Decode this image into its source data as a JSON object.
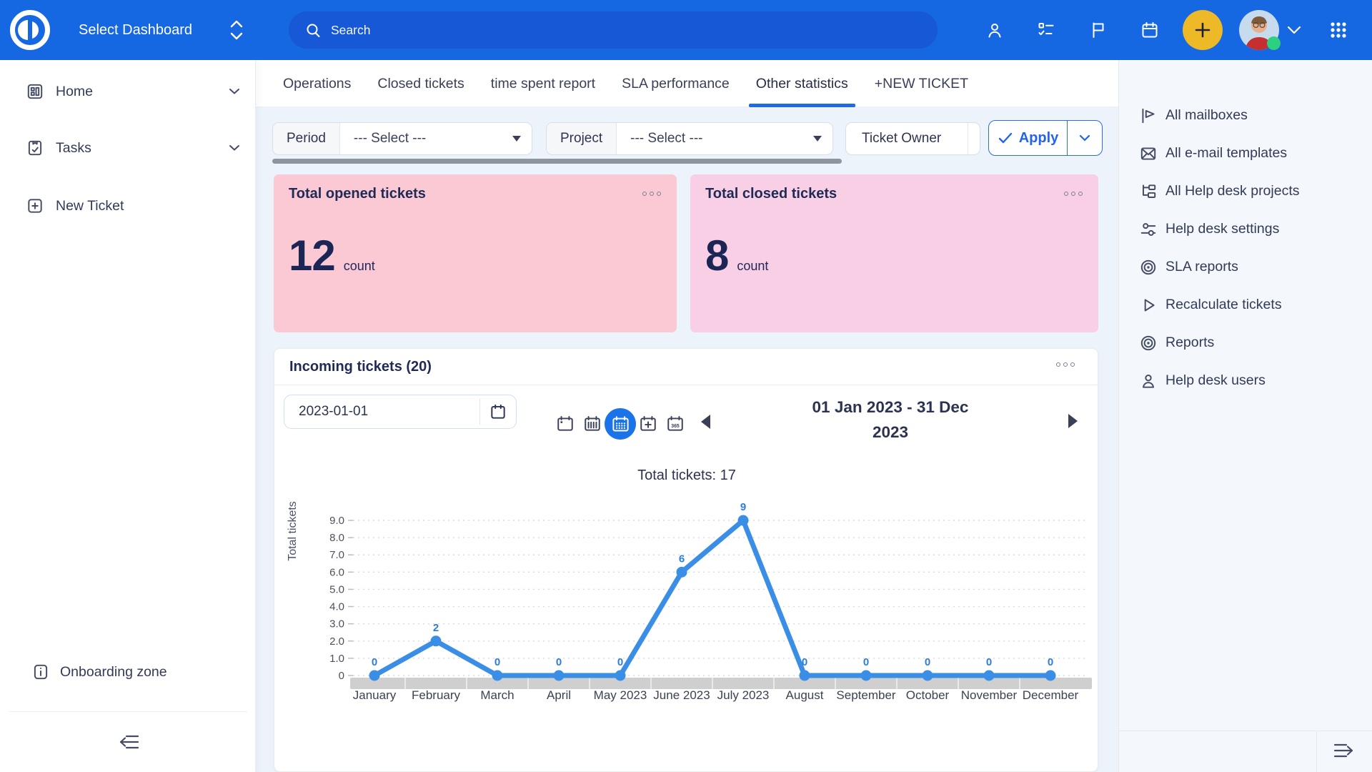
{
  "topbar": {
    "brand": "Select Dashboard",
    "search": {
      "placeholder": "Search"
    },
    "colors": {
      "bar": "#1667e2",
      "search_pill": "#1658d6",
      "plus_button": "#eeb927",
      "presence_dot": "#2bd17e"
    }
  },
  "sidebar": {
    "items": [
      {
        "label": "Home",
        "expandable": true
      },
      {
        "label": "Tasks",
        "expandable": true
      },
      {
        "label": "New Ticket",
        "expandable": false
      }
    ],
    "onboarding_label": "Onboarding zone"
  },
  "tabs": {
    "items": [
      {
        "label": "Operations"
      },
      {
        "label": "Closed tickets"
      },
      {
        "label": "time spent report"
      },
      {
        "label": "SLA performance"
      },
      {
        "label": "Other statistics"
      },
      {
        "label": "+NEW TICKET"
      }
    ],
    "active_index": 4,
    "accent_color": "#2368e4"
  },
  "filters": {
    "period": {
      "label": "Period",
      "value": "--- Select ---"
    },
    "project": {
      "label": "Project",
      "value": "--- Select ---"
    },
    "ticket_owner": {
      "label": "Ticket Owner"
    },
    "apply": {
      "label": "Apply"
    }
  },
  "stat_cards": [
    {
      "title": "Total opened tickets",
      "value": "12",
      "unit": "count",
      "bg": "#fbc9d4"
    },
    {
      "title": "Total closed tickets",
      "value": "8",
      "unit": "count",
      "bg": "#f8cfe5"
    }
  ],
  "widget": {
    "title": "Incoming tickets (20)",
    "date_input_value": "2023-01-01",
    "view_modes": [
      "day",
      "week",
      "month",
      "add-range",
      "year"
    ],
    "active_view": "month",
    "year_icon_label": "365",
    "range": {
      "line1": "01 Jan 2023 - 31 Dec",
      "line2": "2023"
    }
  },
  "chart_data": {
    "type": "line",
    "title": "Total tickets: 17",
    "ylabel": "Total tickets",
    "categories": [
      "January",
      "February",
      "March",
      "April",
      "May 2023",
      "June 2023",
      "July 2023",
      "August",
      "September",
      "October",
      "November",
      "December"
    ],
    "values": [
      0,
      2,
      0,
      0,
      0,
      6,
      9,
      0,
      0,
      0,
      0,
      0
    ],
    "total": 17,
    "ylim": [
      0,
      9
    ],
    "yticks": [
      0,
      1,
      2,
      3,
      4,
      5,
      6,
      7,
      8,
      9
    ],
    "grid": "dashed horizontal",
    "legend": "none",
    "line_color": "#3a8ee6",
    "point_label_color": "#2c7ce2"
  },
  "rightbar": {
    "items": [
      {
        "label": "All mailboxes"
      },
      {
        "label": "All e-mail templates"
      },
      {
        "label": "All Help desk projects"
      },
      {
        "label": "Help desk settings"
      },
      {
        "label": "SLA reports"
      },
      {
        "label": "Recalculate tickets"
      },
      {
        "label": "Reports"
      },
      {
        "label": "Help desk users"
      }
    ]
  }
}
